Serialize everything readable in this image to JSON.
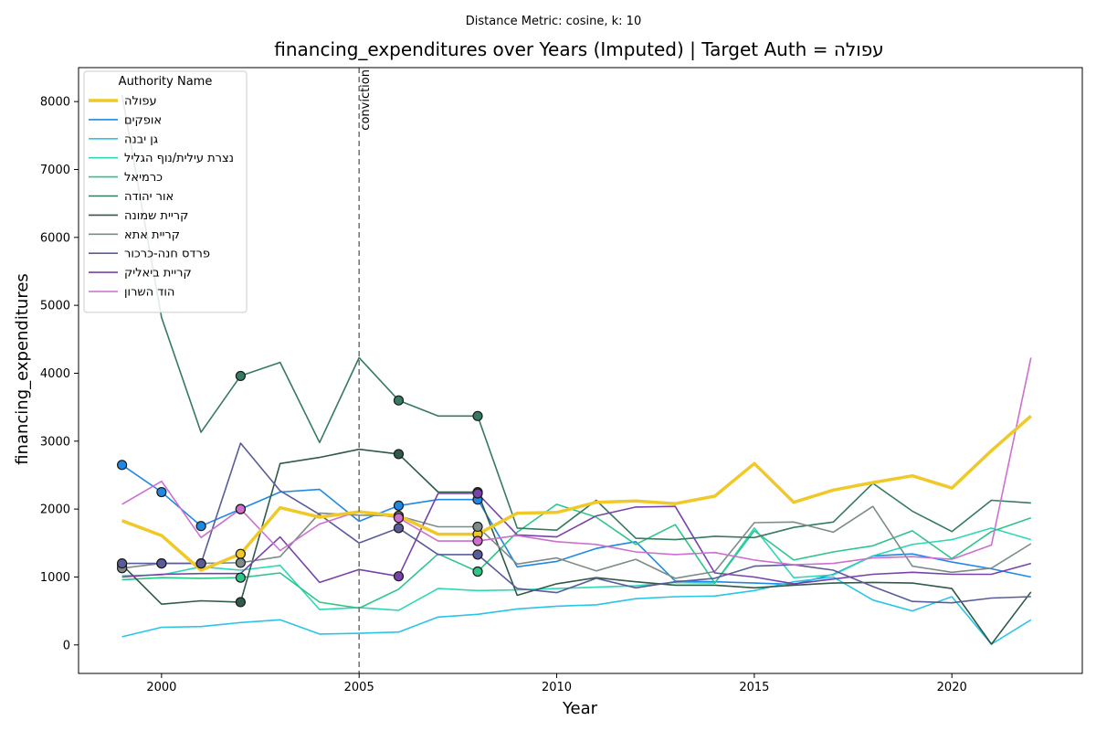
{
  "chart_data": {
    "type": "line",
    "suptitle": "Distance Metric: cosine, k: 10",
    "title": "financing_expenditures over Years (Imputed) | Target Auth = עפולה",
    "xlabel": "Year",
    "ylabel": "financing_expenditures",
    "xlim": [
      1997.9,
      2023.3
    ],
    "ylim": [
      -420,
      8500
    ],
    "xticks": [
      2000,
      2005,
      2010,
      2015,
      2020
    ],
    "yticks": [
      0,
      1000,
      2000,
      3000,
      4000,
      5000,
      6000,
      7000,
      8000
    ],
    "grid": false,
    "legend": {
      "title": "Authority Name",
      "placement": "top-left"
    },
    "vline": {
      "x": 2005,
      "label": "conviction"
    },
    "x": [
      1999,
      2000,
      2001,
      2002,
      2003,
      2004,
      2005,
      2006,
      2007,
      2008,
      2009,
      2010,
      2011,
      2012,
      2013,
      2014,
      2015,
      2016,
      2017,
      2018,
      2019,
      2020,
      2021,
      2022
    ],
    "series": [
      {
        "name": "עפולה",
        "color": "#f0c929",
        "width": 3.5,
        "values": [
          1830,
          1610,
          1100,
          1340,
          2020,
          1880,
          1960,
          1900,
          1630,
          1630,
          1940,
          1950,
          2100,
          2120,
          2080,
          2190,
          2670,
          2100,
          2280,
          2390,
          2490,
          2310,
          2860,
          3370
        ],
        "imputed": [
          2002,
          2006,
          2008
        ]
      },
      {
        "name": "אופקים",
        "color": "#1e88e5",
        "width": 1.6,
        "values": [
          2650,
          2250,
          1750,
          2000,
          2250,
          2290,
          1820,
          2050,
          2140,
          2140,
          1150,
          1230,
          1420,
          1520,
          940,
          930,
          910,
          890,
          1040,
          1310,
          1340,
          1220,
          1120,
          1000
        ],
        "imputed": [
          1999,
          2000,
          2001,
          2002,
          2006,
          2008
        ]
      },
      {
        "name": "גן יבנה",
        "color": "#29c5e6",
        "width": 1.6,
        "values": [
          120,
          260,
          270,
          330,
          370,
          160,
          170,
          190,
          410,
          450,
          530,
          570,
          590,
          680,
          710,
          720,
          800,
          930,
          1000,
          660,
          500,
          710,
          10,
          370
        ],
        "imputed": []
      },
      {
        "name": "נצרת עילית/נוף הגליל",
        "color": "#2ed8b6",
        "width": 1.6,
        "values": [
          1020,
          1030,
          1150,
          1100,
          1170,
          520,
          550,
          510,
          830,
          800,
          810,
          830,
          850,
          870,
          920,
          910,
          1720,
          990,
          1030,
          1310,
          1480,
          1550,
          1720,
          1550
        ],
        "imputed": []
      },
      {
        "name": "כרמיאל",
        "color": "#2dc58a",
        "width": 1.6,
        "values": [
          960,
          990,
          980,
          990,
          1060,
          630,
          540,
          820,
          1340,
          1080,
          1660,
          2070,
          1880,
          1480,
          1770,
          910,
          1680,
          1250,
          1370,
          1460,
          1680,
          1270,
          1670,
          1870
        ],
        "imputed": [
          2002,
          2008
        ]
      },
      {
        "name": "אור יהודה",
        "color": "#357a61",
        "width": 1.6,
        "values": [
          8100,
          4820,
          3130,
          3960,
          4160,
          2980,
          4230,
          3600,
          3370,
          3370,
          1720,
          1690,
          2130,
          1570,
          1550,
          1600,
          1580,
          1730,
          1810,
          2380,
          1970,
          1670,
          2130,
          2090
        ],
        "imputed": [
          2002,
          2006,
          2008
        ]
      },
      {
        "name": "קריית שמונה",
        "color": "#305a49",
        "width": 1.6,
        "values": [
          1180,
          600,
          650,
          630,
          2670,
          2760,
          2880,
          2810,
          2250,
          2250,
          730,
          900,
          990,
          930,
          880,
          880,
          840,
          880,
          910,
          920,
          910,
          830,
          10,
          780
        ],
        "imputed": [
          1999,
          2002,
          2006,
          2008
        ]
      },
      {
        "name": "קריית אתא",
        "color": "#7d8c89",
        "width": 1.6,
        "values": [
          1130,
          1200,
          1200,
          1210,
          1300,
          1940,
          1910,
          1900,
          1740,
          1740,
          1190,
          1280,
          1090,
          1260,
          980,
          1080,
          1800,
          1810,
          1660,
          2040,
          1160,
          1070,
          1130,
          1490
        ],
        "imputed": [
          1999,
          2000,
          2001,
          2002,
          2006,
          2008
        ]
      },
      {
        "name": "פרדס חנה-כרכור",
        "color": "#5a5c9a",
        "width": 1.6,
        "values": [
          1200,
          1200,
          1200,
          2970,
          2270,
          1920,
          1500,
          1720,
          1330,
          1330,
          830,
          770,
          980,
          840,
          930,
          980,
          1160,
          1180,
          1100,
          860,
          640,
          620,
          690,
          710
        ],
        "imputed": [
          1999,
          2000,
          2001,
          2006,
          2008
        ]
      },
      {
        "name": "קריית ביאליק",
        "color": "#7743a8",
        "width": 1.6,
        "values": [
          1000,
          1040,
          1050,
          1050,
          1590,
          920,
          1110,
          1010,
          2230,
          2230,
          1620,
          1590,
          1900,
          2030,
          2040,
          1060,
          1000,
          900,
          970,
          1040,
          1070,
          1040,
          1040,
          1200
        ],
        "imputed": [
          2006,
          2008
        ]
      },
      {
        "name": "הוד השרון",
        "color": "#cc6fcf",
        "width": 1.6,
        "values": [
          2070,
          2410,
          1580,
          2000,
          1390,
          1780,
          1970,
          1870,
          1530,
          1530,
          1610,
          1520,
          1480,
          1370,
          1330,
          1360,
          1250,
          1180,
          1200,
          1280,
          1300,
          1260,
          1470,
          4230
        ],
        "imputed": [
          2002,
          2006,
          2008
        ]
      }
    ]
  }
}
